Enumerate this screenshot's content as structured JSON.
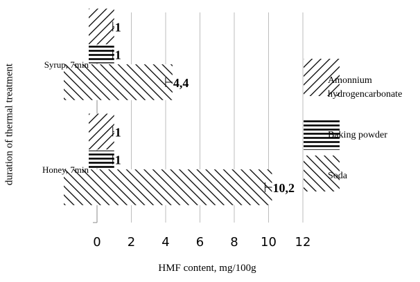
{
  "chart_data": {
    "type": "bar",
    "orientation": "horizontal",
    "xlabel": "HMF content, mg/100g",
    "ylabel": "duration of thermal treatment",
    "xlim": [
      0,
      12
    ],
    "xticks": [
      "0",
      "2",
      "4",
      "6",
      "8",
      "10",
      "12"
    ],
    "grid": true,
    "legend_position": "right",
    "categories": [
      "Honey, 7min",
      "Syrup, 7min"
    ],
    "series": [
      {
        "name": "Soda",
        "pattern": "backslash-hatch",
        "values": [
          10.2,
          4.4
        ],
        "labels": [
          "10,2",
          "4,4"
        ]
      },
      {
        "name": "Baking powder",
        "pattern": "horizontal-lines",
        "values": [
          1,
          1
        ],
        "labels": [
          "1",
          "1"
        ]
      },
      {
        "name": "Amonnium hydrogencarbonate",
        "pattern": "slash-hatch",
        "values": [
          1,
          1
        ],
        "labels": [
          "1",
          "1"
        ]
      }
    ],
    "legend_order": [
      {
        "name": "Amonnium hydrogencarbonate",
        "lines": [
          "Amonnium",
          "hydrogencarbonate"
        ],
        "pattern": "slash-hatch"
      },
      {
        "name": "Baking powder",
        "lines": [
          "Baking powder"
        ],
        "pattern": "horizontal-lines"
      },
      {
        "name": "Soda",
        "lines": [
          "Soda"
        ],
        "pattern": "backslash-hatch"
      }
    ]
  }
}
